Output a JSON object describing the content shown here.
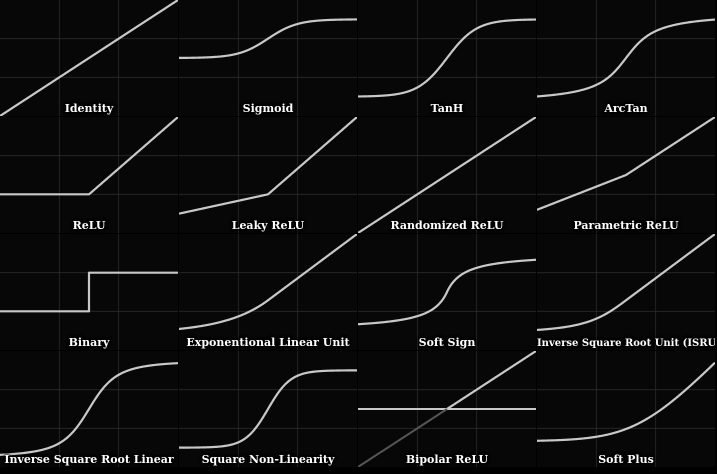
{
  "colors": {
    "background": "#000000",
    "panel": "#070707",
    "grid": "#2a2a2a",
    "curve": "#c8c8c8",
    "label": "#ffffff"
  },
  "chart_data": [
    {
      "type": "line",
      "title": "Identity",
      "function": "identity",
      "xlim": [
        -2,
        2
      ],
      "ylim": [
        -2,
        2
      ],
      "grid": true
    },
    {
      "type": "line",
      "title": "Sigmoid",
      "function": "sigmoid",
      "xlim": [
        -6,
        6
      ],
      "ylim": [
        -1.5,
        1.5
      ],
      "grid": true
    },
    {
      "type": "line",
      "title": "TanH",
      "function": "tanh",
      "xlim": [
        -3,
        3
      ],
      "ylim": [
        -1.5,
        1.5
      ],
      "grid": true
    },
    {
      "type": "line",
      "title": "ArcTan",
      "function": "arctan",
      "xlim": [
        -4,
        4
      ],
      "ylim": [
        -2,
        2
      ],
      "grid": true
    },
    {
      "type": "line",
      "title": "ReLU",
      "function": "relu",
      "xlim": [
        -2,
        2
      ],
      "ylim": [
        -1,
        2
      ],
      "grid": true
    },
    {
      "type": "line",
      "title": "Leaky ReLU",
      "function": "leaky_relu",
      "xlim": [
        -2,
        2
      ],
      "ylim": [
        -1,
        2
      ],
      "grid": true
    },
    {
      "type": "line",
      "title": "Randomized ReLU",
      "function": "randomized_relu",
      "xlim": [
        -2,
        2
      ],
      "ylim": [
        -2,
        2
      ],
      "grid": true
    },
    {
      "type": "line",
      "title": "Parametric ReLU",
      "function": "parametric_relu",
      "xlim": [
        -2,
        2
      ],
      "ylim": [
        -2,
        2
      ],
      "grid": true
    },
    {
      "type": "line",
      "title": "Binary",
      "function": "binary",
      "xlim": [
        -2,
        2
      ],
      "ylim": [
        -1,
        2
      ],
      "grid": true
    },
    {
      "type": "line",
      "title": "Exponentional Linear Unit",
      "function": "elu",
      "xlim": [
        -2,
        2
      ],
      "ylim": [
        -1.5,
        2
      ],
      "grid": true
    },
    {
      "type": "line",
      "title": "Soft Sign",
      "function": "softsign",
      "xlim": [
        -5,
        5
      ],
      "ylim": [
        -1.5,
        1.5
      ],
      "grid": true
    },
    {
      "type": "line",
      "title": "Inverse Square Root Unit (ISRU)",
      "function": "isru",
      "xlim": [
        -2,
        2
      ],
      "ylim": [
        -1.5,
        2
      ],
      "grid": true
    },
    {
      "type": "line",
      "title": "Inverse Square Root Linear",
      "function": "isrl",
      "xlim": [
        -3,
        3
      ],
      "ylim": [
        -1.2,
        1.2
      ],
      "grid": true
    },
    {
      "type": "line",
      "title": "Square Non-Linearity",
      "function": "sqnl",
      "xlim": [
        -3,
        3
      ],
      "ylim": [
        -1.5,
        1.5
      ],
      "grid": true
    },
    {
      "type": "line",
      "title": "Bipolar ReLU",
      "function": "bipolar_relu",
      "xlim": [
        -2,
        2
      ],
      "ylim": [
        -2,
        2
      ],
      "grid": true
    },
    {
      "type": "line",
      "title": "Soft Plus",
      "function": "softplus",
      "xlim": [
        -4,
        3
      ],
      "ylim": [
        -1,
        3.5
      ],
      "grid": true
    }
  ]
}
